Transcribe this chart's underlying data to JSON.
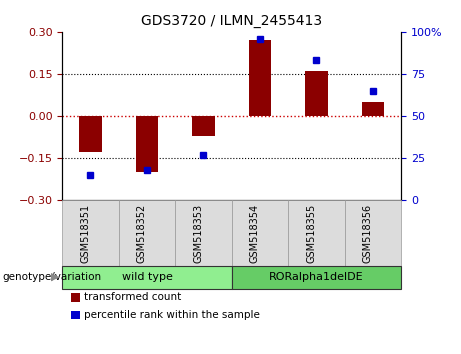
{
  "title": "GDS3720 / ILMN_2455413",
  "samples": [
    "GSM518351",
    "GSM518352",
    "GSM518353",
    "GSM518354",
    "GSM518355",
    "GSM518356"
  ],
  "red_bars": [
    -0.13,
    -0.2,
    -0.07,
    0.27,
    0.16,
    0.05
  ],
  "blue_dots": [
    15,
    18,
    27,
    96,
    83,
    65
  ],
  "ylim_left": [
    -0.3,
    0.3
  ],
  "ylim_right": [
    0,
    100
  ],
  "yticks_left": [
    -0.3,
    -0.15,
    0,
    0.15,
    0.3
  ],
  "yticks_right": [
    0,
    25,
    50,
    75,
    100
  ],
  "hlines_dotted": [
    -0.15,
    0.15
  ],
  "zero_line": 0,
  "bar_color": "#8B0000",
  "dot_color": "#0000CD",
  "zero_line_color": "#CC0000",
  "groups": [
    {
      "label": "wild type",
      "indices": [
        0,
        1,
        2
      ],
      "color": "#90EE90"
    },
    {
      "label": "RORalpha1delDE",
      "indices": [
        3,
        4,
        5
      ],
      "color": "#66CC66"
    }
  ],
  "genotype_label": "genotype/variation",
  "legend_items": [
    {
      "label": "transformed count",
      "color": "#8B0000"
    },
    {
      "label": "percentile rank within the sample",
      "color": "#0000CD"
    }
  ],
  "title_fontsize": 10,
  "tick_fontsize": 8,
  "sample_fontsize": 7,
  "group_fontsize": 8,
  "legend_fontsize": 7.5,
  "genotype_fontsize": 7.5,
  "bar_width": 0.4
}
